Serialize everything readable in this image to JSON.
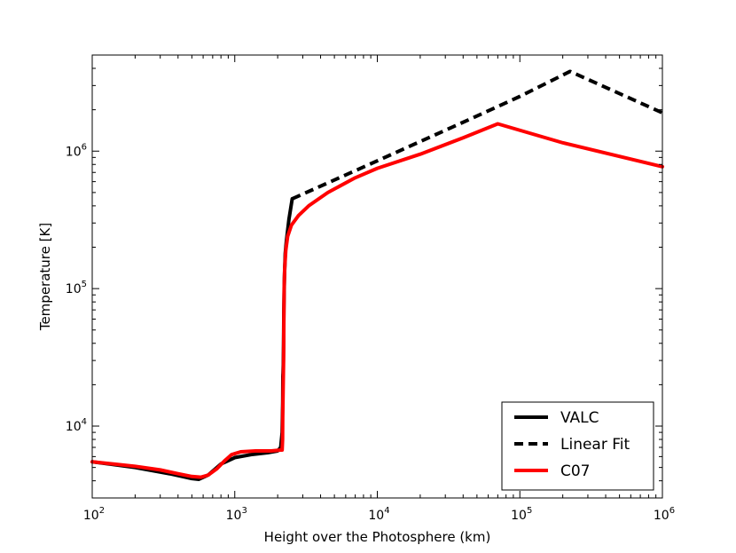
{
  "chart_data": {
    "type": "line",
    "title": "",
    "xlabel": "Height over the Photosphere (km)",
    "ylabel": "Temperature [K]",
    "x_scale": "log",
    "y_scale": "log",
    "xlim": [
      100,
      1000000
    ],
    "ylim": [
      3000,
      5000000
    ],
    "grid": false,
    "legend_position": "lower-right",
    "x_ticks": [
      {
        "value": 100,
        "base": "10",
        "exp": "2"
      },
      {
        "value": 1000,
        "base": "10",
        "exp": "3"
      },
      {
        "value": 10000,
        "base": "10",
        "exp": "4"
      },
      {
        "value": 100000,
        "base": "10",
        "exp": "5"
      },
      {
        "value": 1000000,
        "base": "10",
        "exp": "6"
      }
    ],
    "y_ticks": [
      {
        "value": 10000,
        "base": "10",
        "exp": "4"
      },
      {
        "value": 100000,
        "base": "10",
        "exp": "5"
      },
      {
        "value": 1000000,
        "base": "10",
        "exp": "6"
      }
    ],
    "series": [
      {
        "name": "VALC",
        "color": "#000000",
        "style": "solid",
        "points": [
          [
            100,
            5500
          ],
          [
            200,
            5000
          ],
          [
            350,
            4500
          ],
          [
            500,
            4150
          ],
          [
            560,
            4100
          ],
          [
            650,
            4400
          ],
          [
            800,
            5300
          ],
          [
            1000,
            5900
          ],
          [
            1300,
            6200
          ],
          [
            1700,
            6400
          ],
          [
            2000,
            6600
          ],
          [
            2100,
            7000
          ],
          [
            2150,
            9000
          ],
          [
            2170,
            15000
          ],
          [
            2175,
            23000
          ],
          [
            2180,
            24000
          ],
          [
            2190,
            28000
          ],
          [
            2200,
            40000
          ],
          [
            2210,
            70000
          ],
          [
            2230,
            120000
          ],
          [
            2260,
            180000
          ],
          [
            2300,
            220000
          ],
          [
            2400,
            320000
          ],
          [
            2530,
            450000
          ]
        ]
      },
      {
        "name": "Linear Fit",
        "color": "#000000",
        "style": "dashed",
        "points": [
          [
            2530,
            450000
          ],
          [
            10000,
            850000
          ],
          [
            50000,
            1800000
          ],
          [
            100000,
            2500000
          ],
          [
            225000,
            3800000
          ],
          [
            1000000,
            1900000
          ]
        ]
      },
      {
        "name": "C07",
        "color": "#ff0000",
        "style": "solid",
        "points": [
          [
            100,
            5500
          ],
          [
            200,
            5100
          ],
          [
            300,
            4800
          ],
          [
            400,
            4500
          ],
          [
            500,
            4300
          ],
          [
            580,
            4250
          ],
          [
            650,
            4400
          ],
          [
            750,
            4900
          ],
          [
            850,
            5600
          ],
          [
            950,
            6200
          ],
          [
            1100,
            6500
          ],
          [
            1400,
            6600
          ],
          [
            1800,
            6600
          ],
          [
            2100,
            6700
          ],
          [
            2150,
            6700
          ],
          [
            2165,
            8000
          ],
          [
            2170,
            12000
          ],
          [
            2180,
            16000
          ],
          [
            2200,
            30000
          ],
          [
            2210,
            60000
          ],
          [
            2220,
            100000
          ],
          [
            2240,
            140000
          ],
          [
            2280,
            190000
          ],
          [
            2350,
            240000
          ],
          [
            2500,
            290000
          ],
          [
            2800,
            340000
          ],
          [
            3300,
            400000
          ],
          [
            4500,
            500000
          ],
          [
            7000,
            640000
          ],
          [
            10000,
            750000
          ],
          [
            20000,
            950000
          ],
          [
            40000,
            1250000
          ],
          [
            70000,
            1580000
          ],
          [
            200000,
            1150000
          ],
          [
            1000000,
            770000
          ]
        ]
      }
    ]
  },
  "legend": {
    "items": [
      {
        "label": "VALC",
        "color": "#000000",
        "style": "solid"
      },
      {
        "label": "Linear Fit",
        "color": "#000000",
        "style": "dashed"
      },
      {
        "label": "C07",
        "color": "#ff0000",
        "style": "solid"
      }
    ]
  }
}
